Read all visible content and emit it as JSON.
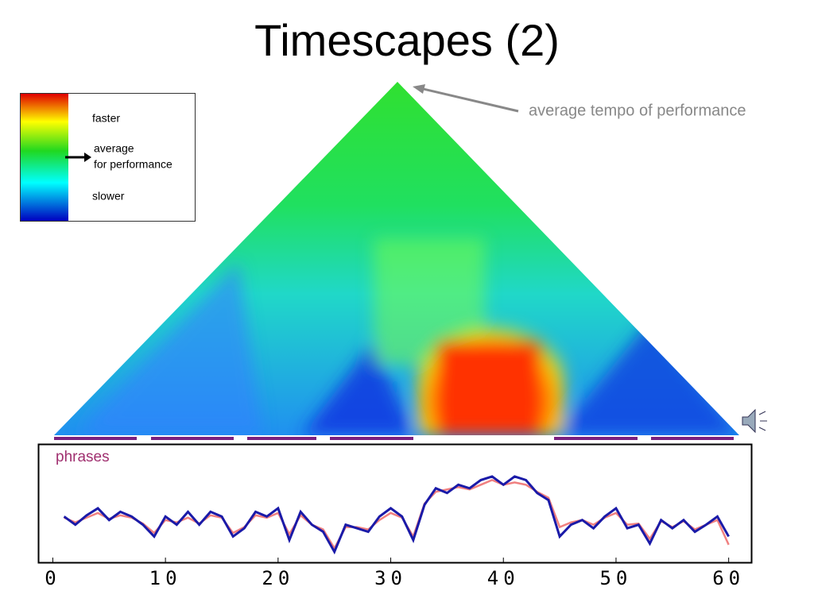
{
  "title": "Timescapes (2)",
  "annotation": "average tempo of performance",
  "colorbar": {
    "faster": "faster",
    "average": [
      "average",
      "for performance"
    ],
    "slower": "slower"
  },
  "chart_data": {
    "type": "line",
    "label": "phrases",
    "x": [
      1,
      2,
      3,
      4,
      5,
      6,
      7,
      8,
      9,
      10,
      11,
      12,
      13,
      14,
      15,
      16,
      17,
      18,
      19,
      20,
      21,
      22,
      23,
      24,
      25,
      26,
      27,
      28,
      29,
      30,
      31,
      32,
      33,
      34,
      35,
      36,
      37,
      38,
      39,
      40,
      41,
      42,
      43,
      44,
      45,
      46,
      47,
      48,
      49,
      50,
      51,
      52,
      53,
      54,
      55,
      56,
      57,
      58,
      59,
      60
    ],
    "series": [
      {
        "color": "#f08080",
        "values": [
          38,
          34,
          38,
          42,
          37,
          40,
          38,
          33,
          25,
          36,
          34,
          38,
          33,
          40,
          38,
          25,
          30,
          40,
          38,
          42,
          24,
          40,
          32,
          28,
          12,
          30,
          30,
          28,
          36,
          42,
          38,
          22,
          50,
          60,
          62,
          64,
          62,
          66,
          70,
          66,
          68,
          66,
          60,
          55,
          30,
          34,
          36,
          32,
          38,
          42,
          32,
          33,
          20,
          35,
          30,
          35,
          28,
          32,
          36,
          15
        ]
      },
      {
        "color": "#1a1aa8",
        "values": [
          39,
          32,
          40,
          46,
          36,
          43,
          39,
          32,
          22,
          39,
          32,
          43,
          32,
          43,
          39,
          22,
          29,
          43,
          39,
          46,
          19,
          43,
          32,
          26,
          9,
          32,
          29,
          26,
          39,
          46,
          39,
          19,
          49,
          63,
          59,
          66,
          63,
          70,
          73,
          66,
          73,
          70,
          59,
          53,
          22,
          32,
          36,
          29,
          39,
          46,
          29,
          32,
          16,
          36,
          29,
          36,
          26,
          32,
          39,
          22
        ]
      }
    ],
    "xlim": [
      -1.3,
      62
    ],
    "ylim": [
      0,
      100
    ],
    "xticks": [
      0,
      10,
      20,
      30,
      40,
      50,
      60
    ]
  }
}
